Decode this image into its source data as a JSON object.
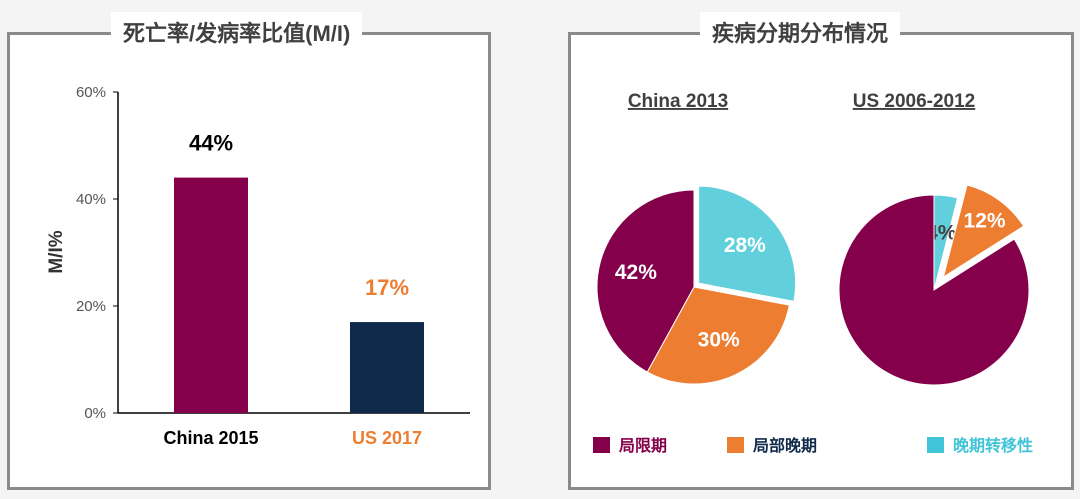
{
  "left_panel": {
    "title": "死亡率/发病率比值(M/I)"
  },
  "right_panel": {
    "title": "疾病分期分布情况"
  },
  "colors": {
    "purple": "#85004b",
    "navy": "#102a4c",
    "orange": "#ed7d31",
    "cyan": "#62d0dc",
    "legend_cyan": "#40c4d8"
  },
  "chart_data": [
    {
      "type": "bar",
      "ylabel": "M/I%",
      "ylim": [
        0,
        60
      ],
      "yticks": [
        "0%",
        "20%",
        "40%",
        "60%"
      ],
      "ytick_values": [
        0,
        20,
        40,
        60
      ],
      "categories": [
        "China 2015",
        "US 2017"
      ],
      "values": [
        44,
        17
      ],
      "labels": [
        "44%",
        "17%"
      ],
      "grid": false
    },
    {
      "type": "pie",
      "title": "China 2013",
      "slices": [
        {
          "name": "局限期",
          "value": 42,
          "label": "42%"
        },
        {
          "name": "局部晚期",
          "value": 30,
          "label": "30%"
        },
        {
          "name": "晚期转移性",
          "value": 28,
          "label": "28%"
        }
      ]
    },
    {
      "type": "pie",
      "title": "US 2006-2012",
      "slices": [
        {
          "name": "局限期",
          "value": 84,
          "label": "84%"
        },
        {
          "name": "局部晚期",
          "value": 12,
          "label": "12%"
        },
        {
          "name": "晚期转移性",
          "value": 4,
          "label": "4%"
        }
      ]
    }
  ],
  "legend": [
    "局限期",
    "局部晚期",
    "晚期转移性"
  ]
}
